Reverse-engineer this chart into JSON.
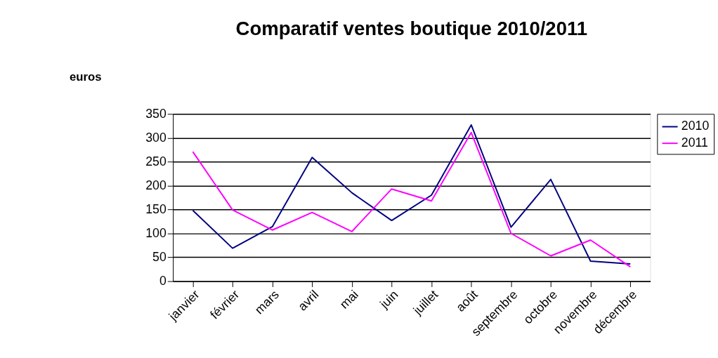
{
  "chart_data": {
    "type": "line",
    "title": "Comparatif ventes boutique 2010/2011",
    "ylabel": "euros",
    "categories": [
      "janvier",
      "février",
      "mars",
      "avril",
      "mai",
      "juin",
      "juillet",
      "août",
      "septembre",
      "octobre",
      "novembre",
      "décembre"
    ],
    "series": [
      {
        "name": "2010",
        "color": "#000080",
        "values": [
          148,
          69,
          114,
          259,
          185,
          127,
          180,
          327,
          113,
          213,
          42,
          36
        ]
      },
      {
        "name": "2011",
        "color": "#ff00ff",
        "values": [
          271,
          149,
          107,
          144,
          104,
          193,
          168,
          311,
          100,
          53,
          86,
          30
        ]
      }
    ],
    "ylim": [
      0,
      350
    ],
    "yticks": [
      0,
      50,
      100,
      150,
      200,
      250,
      300,
      350
    ],
    "grid": "y",
    "legend": "right",
    "marker": "none",
    "line_style": "solid"
  }
}
